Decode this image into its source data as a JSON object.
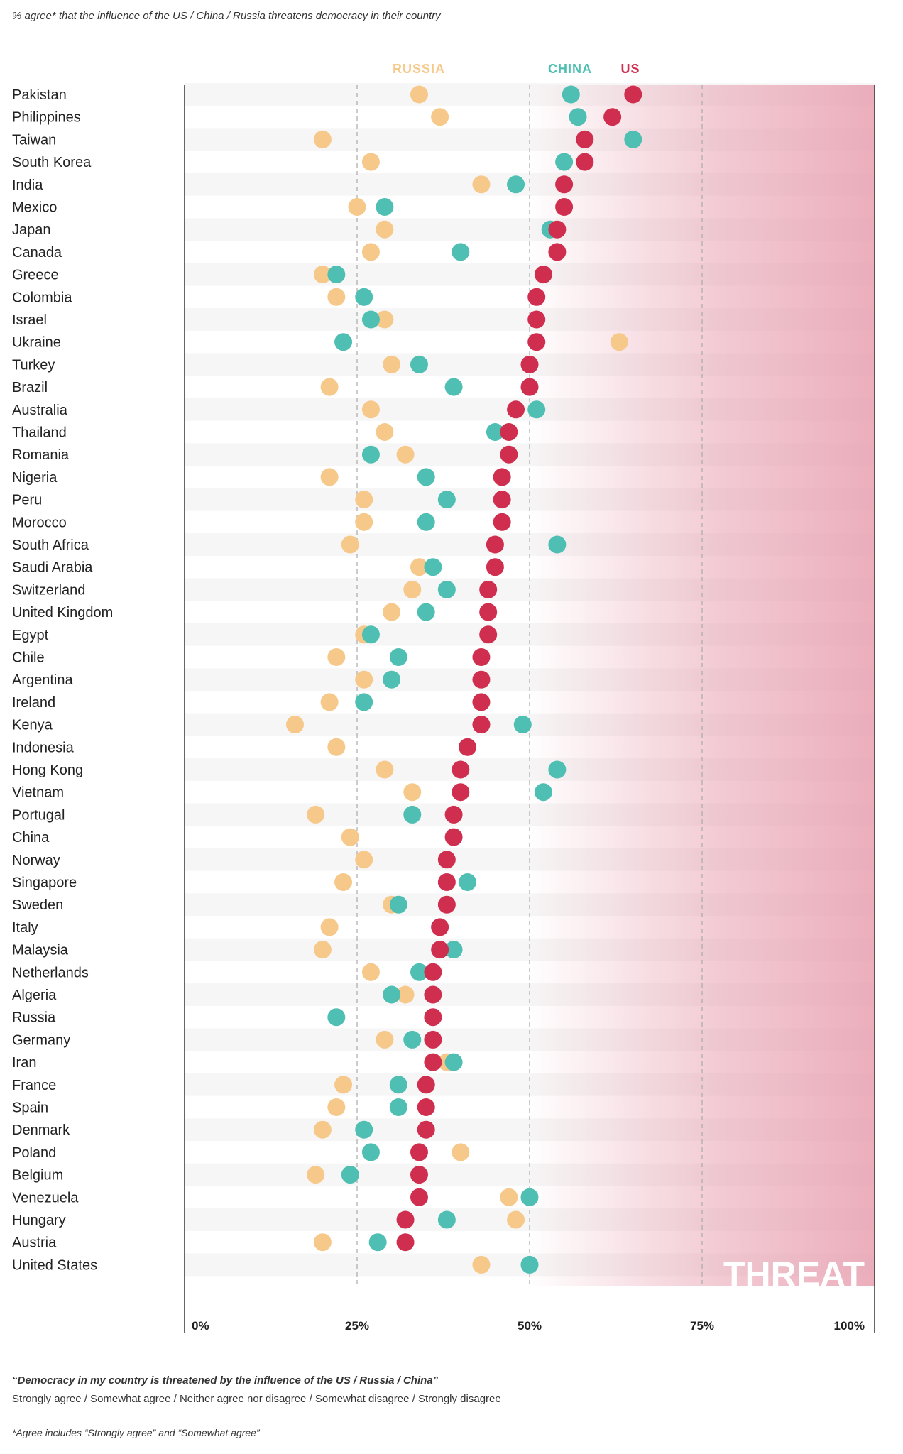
{
  "subtitle": "% agree* that the influence of the US / China / Russia threatens democracy in their country",
  "threat_label": "THREAT",
  "note": {
    "title": "“Democracy in my country is threatened by the influence of the US / Russia / China”",
    "scale": "Strongly agree / Somewhat agree / Neither agree nor disagree / Somewhat disagree / Strongly disagree"
  },
  "footnote": "*Agree includes “Strongly agree” and “Somewhat agree”",
  "colors": {
    "russia": "#f6c98b",
    "china": "#4fbfb3",
    "us": "#cf2e4f",
    "threat": "#e8a0b0"
  },
  "chart_data": {
    "type": "scatter",
    "xlim": [
      0,
      100
    ],
    "x_ticks": [
      "0%",
      "25%",
      "50%",
      "75%",
      "100%"
    ],
    "x_tick_values": [
      0,
      25,
      50,
      75,
      100
    ],
    "grid": "dashed vertical at 25, 50, 75",
    "legend": "top",
    "series": [
      {
        "name": "RUSSIA",
        "key": "russia"
      },
      {
        "name": "CHINA",
        "key": "china"
      },
      {
        "name": "US",
        "key": "us"
      }
    ],
    "countries": [
      "Pakistan",
      "Philippines",
      "Taiwan",
      "South Korea",
      "India",
      "Mexico",
      "Japan",
      "Canada",
      "Greece",
      "Colombia",
      "Israel",
      "Ukraine",
      "Turkey",
      "Brazil",
      "Australia",
      "Thailand",
      "Romania",
      "Nigeria",
      "Peru",
      "Morocco",
      "South Africa",
      "Saudi Arabia",
      "Switzerland",
      "United Kingdom",
      "Egypt",
      "Chile",
      "Argentina",
      "Ireland",
      "Kenya",
      "Indonesia",
      "Hong Kong",
      "Vietnam",
      "Portugal",
      "China",
      "Norway",
      "Singapore",
      "Sweden",
      "Italy",
      "Malaysia",
      "Netherlands",
      "Algeria",
      "Russia",
      "Germany",
      "Iran",
      "France",
      "Spain",
      "Denmark",
      "Poland",
      "Belgium",
      "Venezuela",
      "Hungary",
      "Austria",
      "United States"
    ],
    "russia": [
      34,
      37,
      20,
      27,
      43,
      25,
      29,
      27,
      20,
      22,
      29,
      63,
      30,
      21,
      27,
      29,
      32,
      21,
      26,
      26,
      24,
      34,
      33,
      30,
      26,
      22,
      26,
      21,
      16,
      22,
      29,
      33,
      19,
      24,
      26,
      23,
      30,
      21,
      20,
      27,
      32,
      null,
      29,
      38,
      23,
      22,
      20,
      40,
      19,
      47,
      48,
      20,
      43
    ],
    "china": [
      56,
      57,
      65,
      55,
      48,
      29,
      53,
      40,
      22,
      26,
      27,
      23,
      34,
      39,
      51,
      45,
      27,
      35,
      38,
      35,
      54,
      36,
      38,
      35,
      27,
      31,
      30,
      26,
      49,
      null,
      54,
      52,
      33,
      null,
      null,
      41,
      31,
      null,
      39,
      34,
      30,
      22,
      33,
      39,
      31,
      31,
      26,
      27,
      24,
      50,
      38,
      28,
      50
    ],
    "us": [
      65,
      62,
      58,
      58,
      55,
      55,
      54,
      54,
      52,
      51,
      51,
      51,
      50,
      50,
      48,
      47,
      47,
      46,
      46,
      46,
      45,
      45,
      44,
      44,
      44,
      43,
      43,
      43,
      43,
      41,
      40,
      40,
      39,
      39,
      38,
      38,
      38,
      37,
      37,
      36,
      36,
      36,
      36,
      36,
      35,
      35,
      35,
      34,
      34,
      34,
      32,
      32,
      null
    ]
  }
}
